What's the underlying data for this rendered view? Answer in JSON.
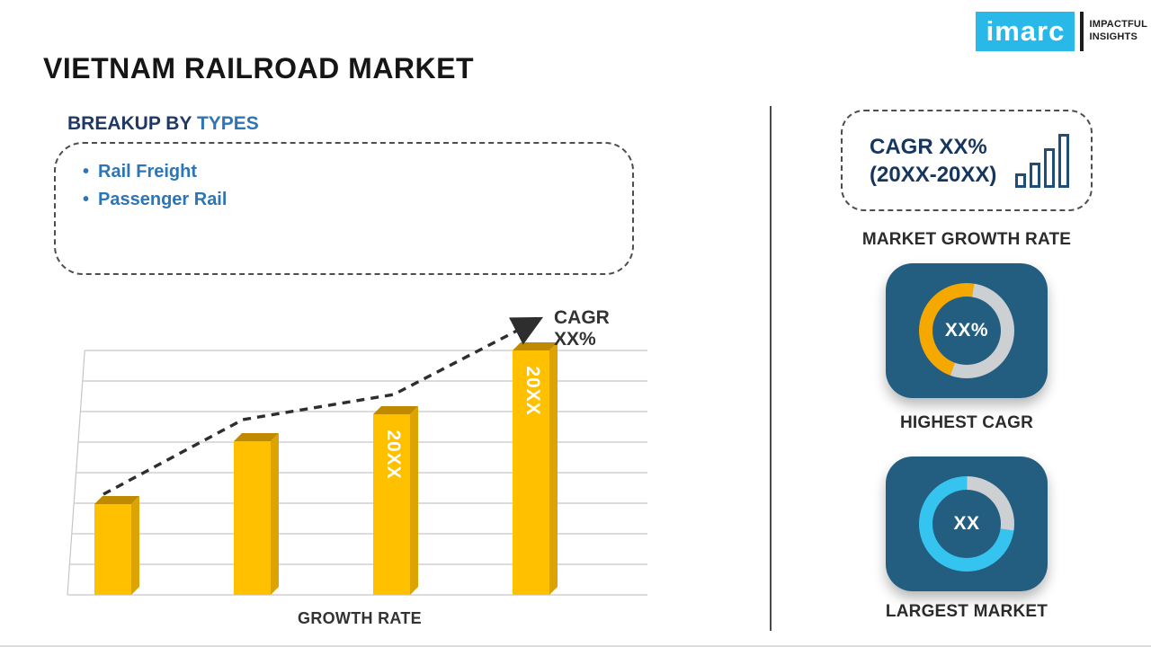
{
  "logo": {
    "brand": "imarc",
    "tagline_line1": "IMPACTFUL",
    "tagline_line2": "INSIGHTS"
  },
  "title": "VIETNAM RAILROAD MARKET",
  "breakup": {
    "heading_prefix": "BREAKUP BY",
    "heading_accent": "TYPES",
    "items": [
      "Rail Freight",
      "Passenger Rail"
    ]
  },
  "chart_data": [
    {
      "type": "bar",
      "title": "",
      "xlabel": "GROWTH RATE",
      "ylabel": "",
      "categories": [
        "",
        "",
        "20XX",
        "20XX"
      ],
      "values": [
        37,
        63,
        74,
        100
      ],
      "note": "y-axis unlabeled; values are relative bar heights (% of tallest bar) estimated from the image",
      "annotation": "CAGR XX%",
      "bar_color": "#FFC000",
      "grid": true,
      "trendline": "dashed arrow rising left-to-right"
    },
    {
      "type": "pie",
      "variant": "donut",
      "label": "HIGHEST CAGR",
      "center_text": "XX%",
      "start_deg": 200,
      "slices": [
        {
          "name": "highlighted",
          "value": 47,
          "color": "#F5A800"
        },
        {
          "name": "remainder",
          "value": 53,
          "color": "#CDD0D2"
        }
      ]
    },
    {
      "type": "pie",
      "variant": "donut",
      "label": "LARGEST MARKET",
      "center_text": "XX",
      "start_deg": 98,
      "slices": [
        {
          "name": "highlighted",
          "value": 73,
          "color": "#35C4EF"
        },
        {
          "name": "remainder",
          "value": 27,
          "color": "#CDD0D2"
        }
      ]
    }
  ],
  "right_panel": {
    "cagr_box": {
      "line1": "CAGR XX%",
      "line2": "(20XX-20XX)"
    },
    "market_growth_label": "MARKET GROWTH RATE"
  },
  "colors": {
    "accent_blue": "#2E75B6",
    "navy": "#1F3864",
    "tile_bg": "#235E80",
    "bar_gold": "#FFC000",
    "logo_cyan": "#29B9E8"
  }
}
